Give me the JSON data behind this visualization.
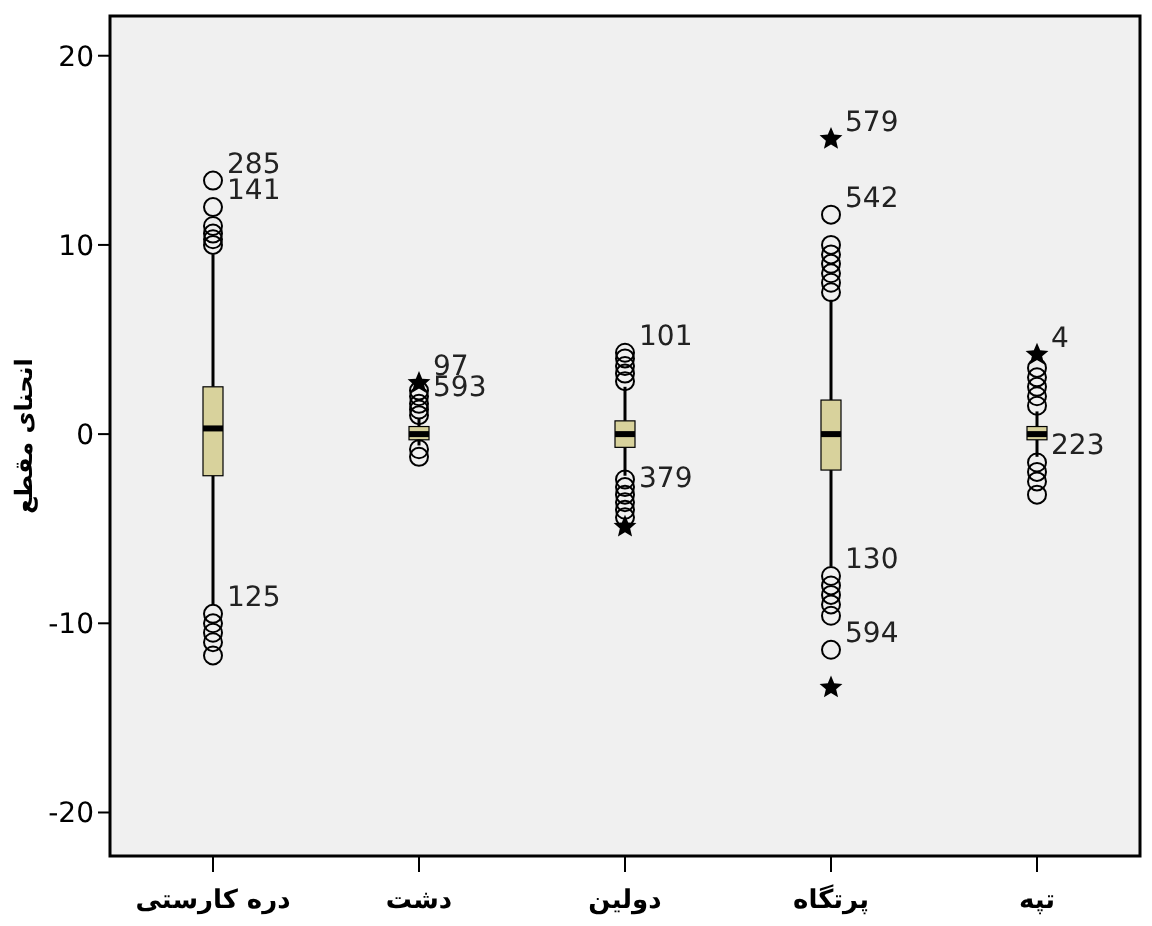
{
  "chart_data": {
    "type": "box",
    "ylabel": "انحنای مقطع",
    "categories": [
      "دره کارستی",
      "دشت",
      "دولین",
      "پرتگاه",
      "تپه"
    ],
    "boxes": [
      {
        "low": -9.0,
        "q1": -2.2,
        "median": 0.3,
        "q3": 2.5,
        "high": 9.5,
        "outliers": [
          11.0,
          10.6,
          10.3,
          10.0,
          -10.0,
          -10.5,
          -11.0,
          -11.7
        ]
      },
      {
        "low": -0.6,
        "q1": -0.3,
        "median": 0.0,
        "q3": 0.4,
        "high": 0.8,
        "outliers": [
          1.0,
          1.3,
          2.0,
          2.3,
          -0.8,
          -1.2
        ]
      },
      {
        "low": -2.2,
        "q1": -0.7,
        "median": 0.0,
        "q3": 0.7,
        "high": 2.5,
        "outliers": [
          2.8,
          3.2,
          3.6,
          4.0,
          -2.4,
          -2.8,
          -3.6,
          -4.0,
          -4.4
        ]
      },
      {
        "low": -7.0,
        "q1": -1.9,
        "median": 0.0,
        "q3": 1.8,
        "high": 7.1,
        "outliers": [
          7.5,
          8.0,
          8.5,
          9.0,
          9.5,
          10.0,
          -8.0,
          -8.5,
          -9.0,
          -9.6
        ]
      },
      {
        "low": -1.2,
        "q1": -0.3,
        "median": 0.0,
        "q3": 0.4,
        "high": 1.2,
        "outliers": [
          1.5,
          2.0,
          2.5,
          3.0,
          3.5,
          -2.0,
          -2.5,
          -3.2
        ]
      }
    ],
    "colors": [
      "#d8d29c",
      "#d8d29c",
      "#d8d29c",
      "#d8d29c",
      "#d8d29c"
    ],
    "series": [
      {
        "type": "scatter",
        "marker": "star",
        "color": "#000000",
        "x": [
          "دشت",
          "دولین",
          "پرتگاه",
          "پرتگاه",
          "تپه"
        ],
        "values": [
          2.7,
          -4.9,
          15.6,
          -13.4,
          4.2
        ]
      },
      {
        "type": "scatter",
        "marker": "circle",
        "color": "#000000",
        "x": [
          "دره کارستی",
          "دره کارستی",
          "دره کارستی",
          "دشت",
          "دولین",
          "دولین",
          "پرتگاه",
          "پرتگاه",
          "پرتگاه",
          "تپه"
        ],
        "values": [
          13.4,
          12.0,
          -9.5,
          1.6,
          4.3,
          -3.2,
          11.6,
          -7.5,
          -11.4,
          -1.5
        ]
      }
    ],
    "ylim": [
      -22.3,
      22.1
    ],
    "yticks": [
      -20,
      -10,
      0,
      10,
      20
    ],
    "grid": false,
    "annotations": [
      {
        "text": "285",
        "x": "دره کارستی",
        "y": 13.4
      },
      {
        "text": "141",
        "x": "دره کارستی",
        "y": 12.0
      },
      {
        "text": "125",
        "x": "دره کارستی",
        "y": -9.5
      },
      {
        "text": "97",
        "x": "دشت",
        "y": 2.7
      },
      {
        "text": "593",
        "x": "دشت",
        "y": 1.6
      },
      {
        "text": "101",
        "x": "دولین",
        "y": 4.3
      },
      {
        "text": "379",
        "x": "دولین",
        "y": -3.2
      },
      {
        "text": "579",
        "x": "پرتگاه",
        "y": 15.6
      },
      {
        "text": "542",
        "x": "پرتگاه",
        "y": 11.6
      },
      {
        "text": "130",
        "x": "پرتگاه",
        "y": -7.5
      },
      {
        "text": "594",
        "x": "پرتگاه",
        "y": -11.4
      },
      {
        "text": "4",
        "x": "تپه",
        "y": 4.2
      },
      {
        "text": "223",
        "x": "تپه",
        "y": -1.5
      }
    ]
  }
}
